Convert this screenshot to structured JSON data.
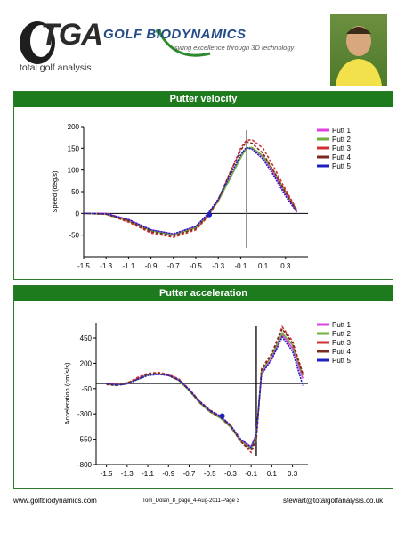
{
  "header": {
    "tga_logo_text": "TGA",
    "tga_subtitle": "total golf analysis",
    "gb_title": "GOLF BIODYNAMICS",
    "gb_tagline": "swing excellence through 3D technology"
  },
  "footer": {
    "left": "www.golfbiodynamics.com",
    "center": "Tom_Dolan_8_page_4-Aug-2011-Page 3",
    "right": "stewart@totalgolfanalysis.co.uk"
  },
  "colors": {
    "panel_header": "#1d7a1d",
    "putt1": "#e040e0",
    "putt2": "#70b040",
    "putt3": "#d03030",
    "putt4": "#7a2a20",
    "putt5": "#2020c0"
  },
  "chart_data": [
    {
      "type": "line",
      "title": "Putter velocity",
      "xlabel": "",
      "ylabel": "Speed (deg/s)",
      "xlim": [
        -1.5,
        0.5
      ],
      "ylim": [
        -100,
        200
      ],
      "xticks": [
        -1.5,
        -1.3,
        -1.1,
        -0.9,
        -0.7,
        -0.5,
        -0.3,
        -0.1,
        0.1,
        0.3
      ],
      "xtick_labels": [
        "-1.5",
        "-1.3",
        "-1.1",
        "-0.9",
        "-0.7",
        "-0.5",
        "-0.3",
        "-0.1",
        "0.1",
        "0.3"
      ],
      "yticks": [
        -50,
        0,
        50,
        100,
        150,
        200
      ],
      "ytick_labels": [
        "-50",
        "0",
        "50",
        "100",
        "150",
        "200"
      ],
      "legend": "top-right",
      "impact_marker_x": -0.05,
      "series": [
        {
          "name": "Putt 1",
          "x": [
            -1.5,
            -1.3,
            -1.1,
            -0.9,
            -0.7,
            -0.5,
            -0.4,
            -0.3,
            -0.2,
            -0.1,
            -0.05,
            0.0,
            0.1,
            0.2,
            0.3,
            0.4
          ],
          "y": [
            0,
            0,
            -15,
            -38,
            -48,
            -30,
            -5,
            30,
            80,
            130,
            150,
            150,
            130,
            90,
            45,
            5
          ]
        },
        {
          "name": "Putt 2",
          "x": [
            -1.5,
            -1.3,
            -1.1,
            -0.9,
            -0.7,
            -0.5,
            -0.4,
            -0.3,
            -0.2,
            -0.1,
            -0.05,
            0.0,
            0.1,
            0.2,
            0.3,
            0.4
          ],
          "y": [
            0,
            -2,
            -18,
            -40,
            -50,
            -33,
            -8,
            28,
            78,
            128,
            150,
            152,
            132,
            95,
            50,
            8
          ]
        },
        {
          "name": "Putt 3",
          "x": [
            -1.5,
            -1.3,
            -1.1,
            -0.9,
            -0.7,
            -0.5,
            -0.4,
            -0.3,
            -0.2,
            -0.1,
            -0.05,
            0.0,
            0.1,
            0.2,
            0.3,
            0.4
          ],
          "y": [
            0,
            -2,
            -20,
            -45,
            -55,
            -38,
            -10,
            30,
            90,
            150,
            168,
            170,
            150,
            105,
            55,
            8
          ]
        },
        {
          "name": "Putt 4",
          "x": [
            -1.5,
            -1.3,
            -1.1,
            -0.9,
            -0.7,
            -0.5,
            -0.4,
            -0.3,
            -0.2,
            -0.1,
            -0.05,
            0.0,
            0.1,
            0.2,
            0.3,
            0.4
          ],
          "y": [
            0,
            -1,
            -17,
            -42,
            -52,
            -35,
            -8,
            32,
            92,
            145,
            165,
            162,
            138,
            95,
            48,
            5
          ]
        },
        {
          "name": "Putt 5",
          "x": [
            -1.5,
            -1.3,
            -1.1,
            -0.9,
            -0.7,
            -0.5,
            -0.4,
            -0.3,
            -0.2,
            -0.1,
            -0.05,
            0.0,
            0.1,
            0.2,
            0.3,
            0.4
          ],
          "y": [
            0,
            -1,
            -14,
            -38,
            -47,
            -30,
            -3,
            33,
            85,
            135,
            152,
            148,
            125,
            85,
            40,
            3
          ]
        }
      ]
    },
    {
      "type": "line",
      "title": "Putter acceleration",
      "xlabel": "",
      "ylabel": "Acceleration (cm/s/s)",
      "xlim": [
        -1.6,
        0.45
      ],
      "ylim": [
        -800,
        600
      ],
      "xticks": [
        -1.5,
        -1.3,
        -1.1,
        -0.9,
        -0.7,
        -0.5,
        -0.3,
        -0.1,
        0.1,
        0.3
      ],
      "xtick_labels": [
        "-1.5",
        "-1.3",
        "-1.1",
        "-0.9",
        "-0.7",
        "-0.5",
        "-0.3",
        "-0.1",
        "0.1",
        "0.3"
      ],
      "yticks": [
        -800,
        -550,
        -300,
        -50,
        200,
        450
      ],
      "ytick_labels": [
        "-800",
        "-550",
        "-300",
        "-50",
        "200",
        "450"
      ],
      "legend": "top-right",
      "impact_marker_x": -0.05,
      "series": [
        {
          "name": "Putt 1",
          "x": [
            -1.5,
            -1.4,
            -1.3,
            -1.2,
            -1.1,
            -1.0,
            -0.9,
            -0.8,
            -0.7,
            -0.6,
            -0.5,
            -0.4,
            -0.3,
            -0.2,
            -0.1,
            -0.05,
            0.0,
            0.1,
            0.2,
            0.3,
            0.4
          ],
          "y": [
            0,
            -10,
            0,
            50,
            90,
            95,
            85,
            40,
            -60,
            -180,
            -270,
            -330,
            -420,
            -560,
            -620,
            -500,
            100,
            250,
            480,
            350,
            50
          ]
        },
        {
          "name": "Putt 2",
          "x": [
            -1.5,
            -1.4,
            -1.3,
            -1.2,
            -1.1,
            -1.0,
            -0.9,
            -0.8,
            -0.7,
            -0.6,
            -0.5,
            -0.4,
            -0.3,
            -0.2,
            -0.1,
            -0.05,
            0.0,
            0.1,
            0.2,
            0.3,
            0.4
          ],
          "y": [
            -5,
            -15,
            10,
            40,
            85,
            100,
            80,
            30,
            -70,
            -190,
            -280,
            -340,
            -430,
            -570,
            -640,
            -520,
            120,
            280,
            500,
            380,
            80
          ]
        },
        {
          "name": "Putt 3",
          "x": [
            -1.5,
            -1.4,
            -1.3,
            -1.2,
            -1.1,
            -1.0,
            -0.9,
            -0.8,
            -0.7,
            -0.6,
            -0.5,
            -0.4,
            -0.3,
            -0.2,
            -0.1,
            -0.05,
            0.0,
            0.1,
            0.2,
            0.3,
            0.4
          ],
          "y": [
            0,
            -5,
            5,
            60,
            100,
            110,
            90,
            45,
            -55,
            -170,
            -260,
            -320,
            -410,
            -570,
            -680,
            -560,
            150,
            300,
            560,
            420,
            100
          ]
        },
        {
          "name": "Putt 4",
          "x": [
            -1.5,
            -1.4,
            -1.3,
            -1.2,
            -1.1,
            -1.0,
            -0.9,
            -0.8,
            -0.7,
            -0.6,
            -0.5,
            -0.4,
            -0.3,
            -0.2,
            -0.1,
            -0.05,
            0.0,
            0.1,
            0.2,
            0.3,
            0.4
          ],
          "y": [
            -10,
            -20,
            0,
            45,
            95,
            100,
            80,
            35,
            -65,
            -185,
            -275,
            -330,
            -420,
            -575,
            -660,
            -540,
            130,
            290,
            540,
            400,
            90
          ]
        },
        {
          "name": "Putt 5",
          "x": [
            -1.5,
            -1.4,
            -1.3,
            -1.2,
            -1.1,
            -1.0,
            -0.9,
            -0.8,
            -0.7,
            -0.6,
            -0.5,
            -0.4,
            -0.3,
            -0.2,
            -0.1,
            -0.05,
            0.0,
            0.1,
            0.2,
            0.3,
            0.4
          ],
          "y": [
            0,
            -15,
            -5,
            40,
            80,
            90,
            80,
            35,
            -60,
            -175,
            -265,
            -320,
            -410,
            -550,
            -630,
            -500,
            90,
            240,
            460,
            320,
            -20
          ]
        }
      ]
    }
  ]
}
